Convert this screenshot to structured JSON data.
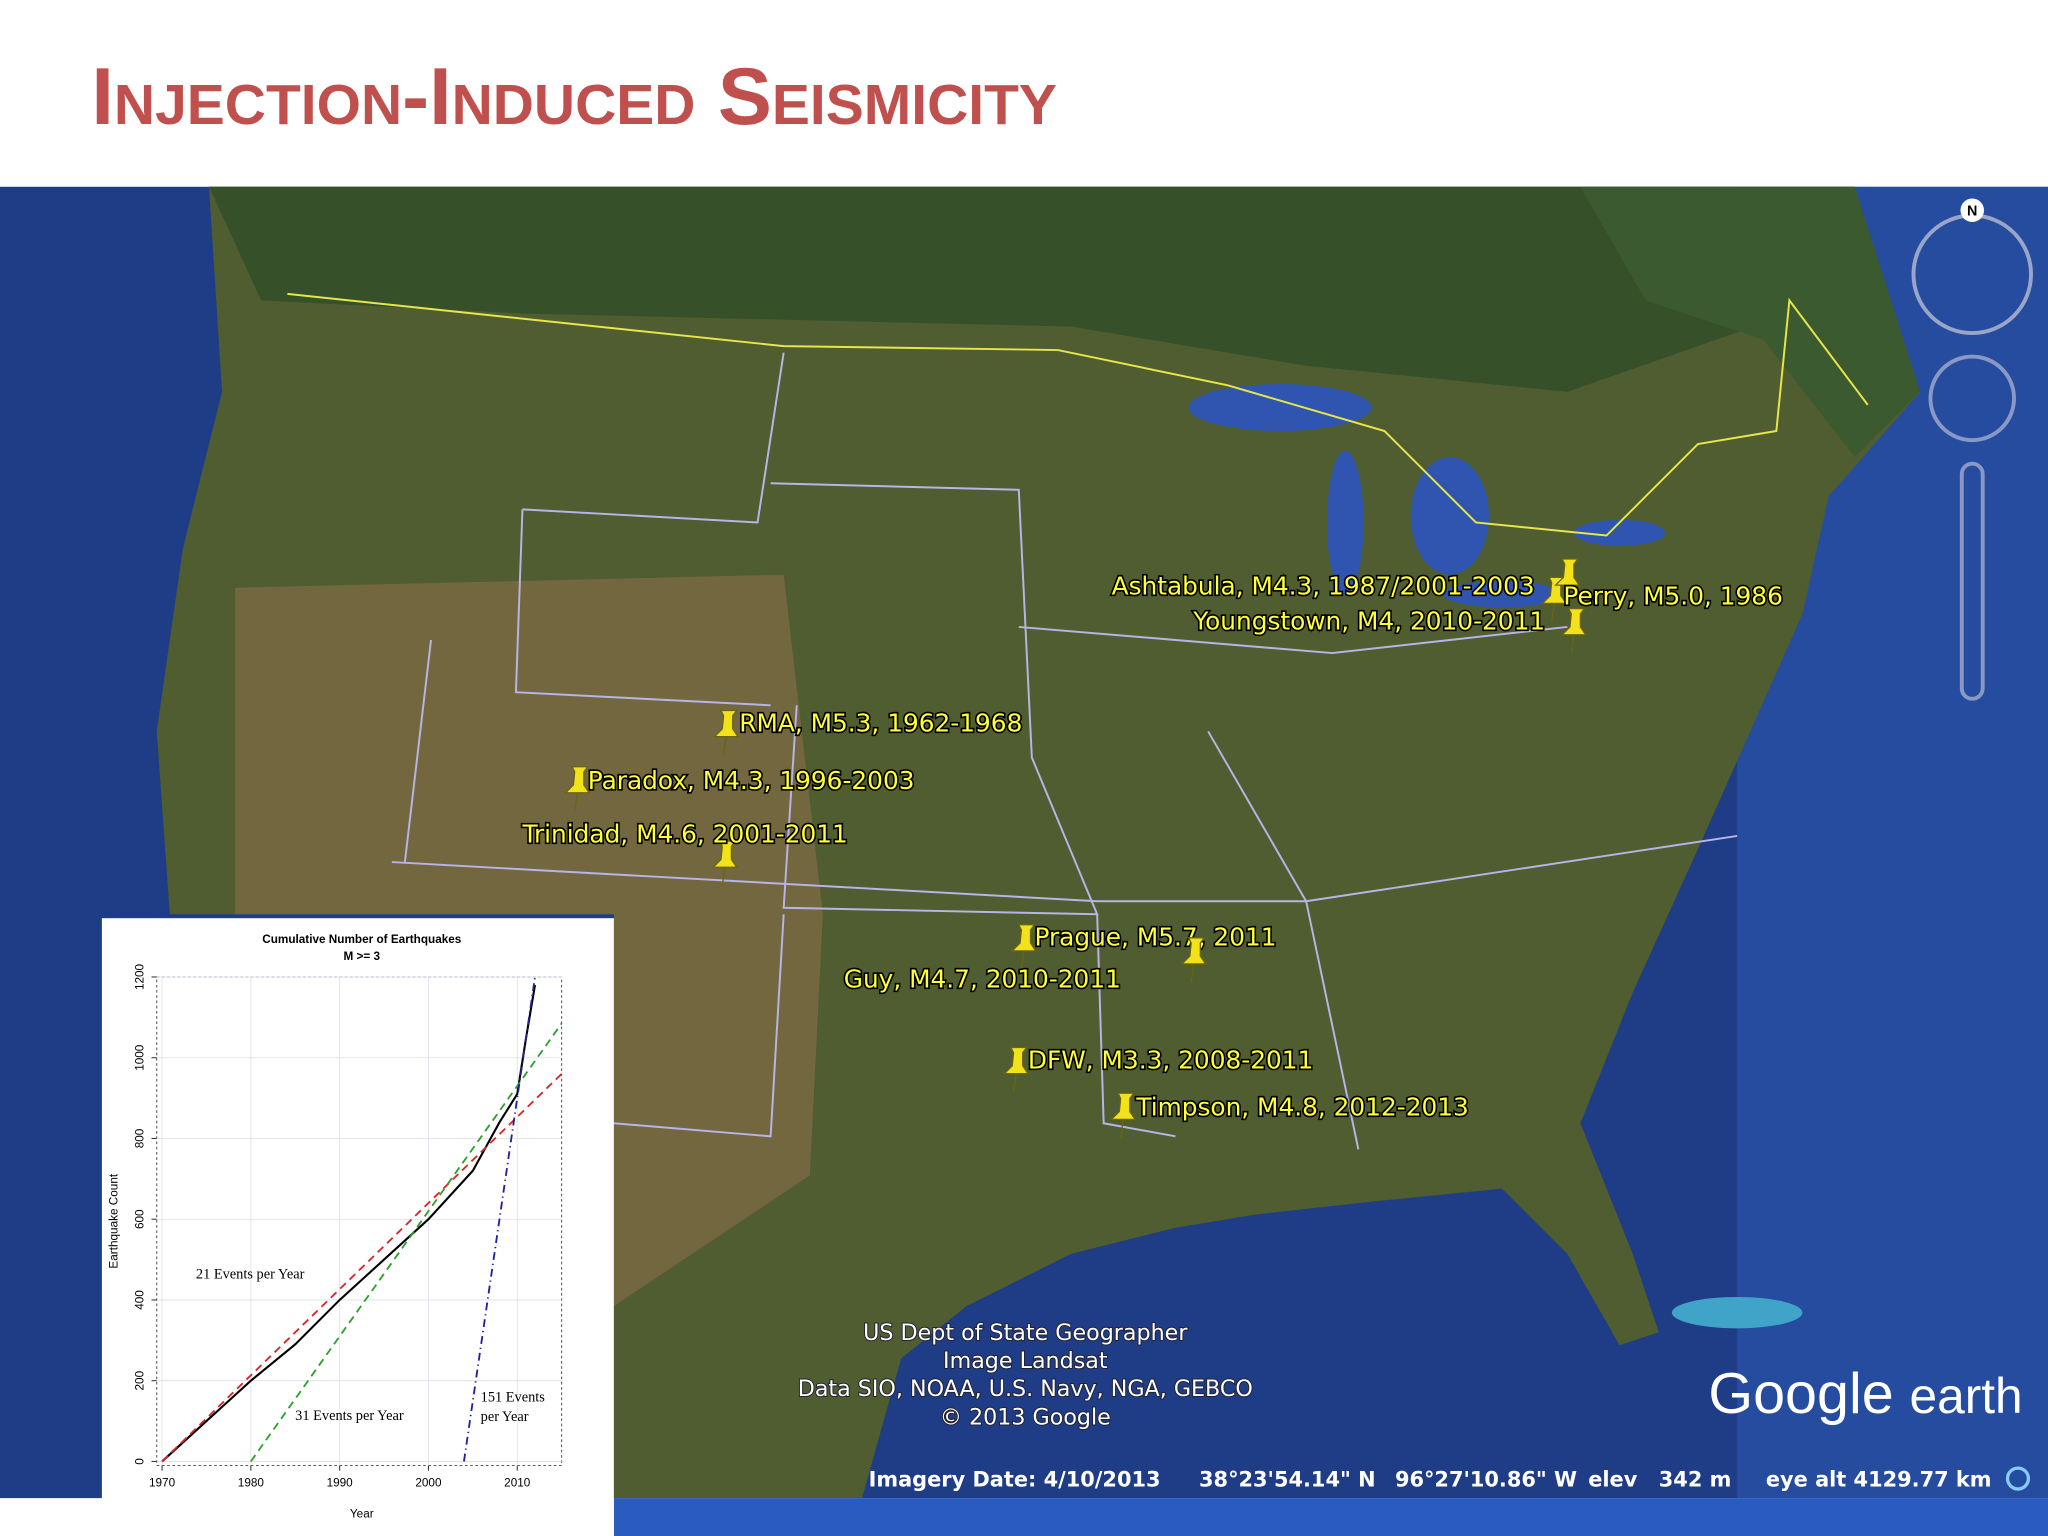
{
  "title": "Injection-Induced Seismicity",
  "map": {
    "placemarks": [
      "Ashtabula, M4.3, 1987/2001-2003",
      "Perry, M5.0, 1986",
      "Youngstown, M4, 2010-2011",
      "RMA, M5.3, 1962-1968",
      "Paradox, M4.3, 1996-2003",
      "Trinidad, M4.6, 2001-2011",
      "Prague, M5.7, 2011",
      "Guy, M4.7, 2010-2011",
      "DFW, M3.3, 2008-2011",
      "Timpson, M4.8, 2012-2013"
    ],
    "attribution": [
      "US Dept of State Geographer",
      "Image Landsat",
      "Data SIO, NOAA, U.S. Navy, NGA, GEBCO",
      "© 2013 Google"
    ],
    "status_bar": [
      "Imagery Date: 4/10/2013",
      "38°23'54.14\" N",
      "96°27'10.86\" W",
      "elev",
      "342 m",
      "eye alt 4129.77 km"
    ],
    "logo": [
      "Google",
      "earth"
    ],
    "compass": "N"
  },
  "chart_data": {
    "type": "line",
    "title": "Cumulative Number of Earthquakes",
    "subtitle": "M >= 3",
    "x_label": "Year",
    "y_label": "Earthquake Count",
    "xlim": [
      1969.4,
      2015
    ],
    "xticks": [
      1970,
      1980,
      1990,
      2000,
      2010
    ],
    "ylim": [
      -10,
      1200
    ],
    "yticks": [
      0,
      200,
      400,
      600,
      800,
      1000,
      1200
    ],
    "grid": true,
    "series": [
      {
        "color": "#000000",
        "line_style": "solid",
        "x": [
          1970,
          1975,
          1980,
          1985,
          1990,
          1995,
          2000,
          2005,
          2008,
          2010,
          2011,
          2012
        ],
        "values": [
          0,
          100,
          200,
          290,
          400,
          500,
          600,
          720,
          840,
          910,
          1050,
          1180
        ]
      },
      {
        "color": "#d62728",
        "line_style": "dashed",
        "x": [
          1970,
          2015
        ],
        "values": [
          0,
          960
        ]
      },
      {
        "color": "#2ca02c",
        "line_style": "dashed",
        "x": [
          1980,
          2015
        ],
        "values": [
          0,
          1085
        ]
      },
      {
        "color": "#1f1fa0",
        "line_style": "dashdot",
        "x": [
          2004,
          2012
        ],
        "values": [
          0,
          1200
        ]
      }
    ],
    "annotations": [
      "21 Events per Year",
      "31 Events per Year",
      "151 Events",
      "per Year"
    ]
  }
}
